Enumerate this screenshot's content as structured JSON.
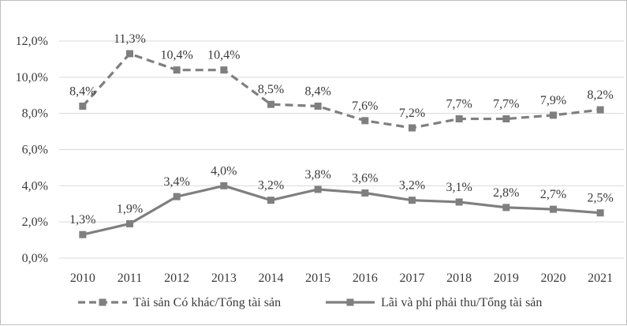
{
  "chart_data": {
    "type": "line",
    "title": "",
    "xlabel": "",
    "ylabel": "",
    "categories": [
      "2010",
      "2011",
      "2012",
      "2013",
      "2014",
      "2015",
      "2016",
      "2017",
      "2018",
      "2019",
      "2020",
      "2021"
    ],
    "ylim": [
      0,
      12
    ],
    "yticks": [
      0,
      2,
      4,
      6,
      8,
      10,
      12
    ],
    "ytick_labels": [
      "0,0%",
      "2,0%",
      "4,0%",
      "6,0%",
      "8,0%",
      "10,0%",
      "12,0%"
    ],
    "grid": "horizontal",
    "legend_position": "bottom",
    "series": [
      {
        "name": "Tài sản Có khác/Tổng tài sản",
        "style": "dashed",
        "marker": "square",
        "color": "#7f7f7f",
        "values": [
          8.4,
          11.3,
          10.4,
          10.4,
          8.5,
          8.4,
          7.6,
          7.2,
          7.7,
          7.7,
          7.9,
          8.2
        ],
        "labels": [
          "8,4%",
          "11,3%",
          "10,4%",
          "10,4%",
          "8,5%",
          "8,4%",
          "7,6%",
          "7,2%",
          "7,7%",
          "7,7%",
          "7,9%",
          "8,2%"
        ]
      },
      {
        "name": "Lãi và phí phải thu/Tổng tài sản",
        "style": "solid",
        "marker": "square",
        "color": "#7f7f7f",
        "values": [
          1.3,
          1.9,
          3.4,
          4.0,
          3.2,
          3.8,
          3.6,
          3.2,
          3.1,
          2.8,
          2.7,
          2.5
        ],
        "labels": [
          "1,3%",
          "1,9%",
          "3,4%",
          "4,0%",
          "3,2%",
          "3,8%",
          "3,6%",
          "3,2%",
          "3,1%",
          "2,8%",
          "2,7%",
          "2,5%"
        ]
      }
    ]
  }
}
